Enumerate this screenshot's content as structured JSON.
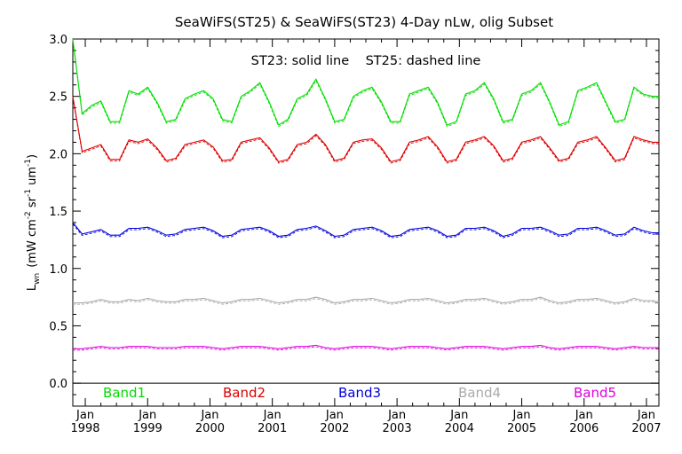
{
  "chart_data": {
    "type": "line",
    "title": "SeaWiFS(ST25) & SeaWiFS(ST23) 4-Day nLw, olig Subset",
    "annotation": "ST23: solid line    ST25: dashed line",
    "ylabel": "L_wn (mW cm^-2 sr^-1 um^-1)",
    "ylabel_parts": {
      "main": "L",
      "sub": "wn",
      "unit": "(mW cm",
      "e1": "-2",
      "mid": " sr",
      "e2": "-1",
      "mid2": " um",
      "e3": "-1",
      "close": ")"
    },
    "ylim": [
      -0.2,
      3.0
    ],
    "yticks": [
      "0.0",
      "0.5",
      "1.0",
      "1.5",
      "2.0",
      "2.5",
      "3.0"
    ],
    "xlim": [
      1997.8,
      2007.2
    ],
    "xticks": [
      {
        "month": "Jan",
        "year": "1998",
        "x": 1998.0
      },
      {
        "month": "Jan",
        "year": "1999",
        "x": 1999.0
      },
      {
        "month": "Jan",
        "year": "2000",
        "x": 2000.0
      },
      {
        "month": "Jan",
        "year": "2001",
        "x": 2001.0
      },
      {
        "month": "Jan",
        "year": "2002",
        "x": 2002.0
      },
      {
        "month": "Jan",
        "year": "2003",
        "x": 2003.0
      },
      {
        "month": "Jan",
        "year": "2004",
        "x": 2004.0
      },
      {
        "month": "Jan",
        "year": "2005",
        "x": 2005.0
      },
      {
        "month": "Jan",
        "year": "2006",
        "x": 2006.0
      },
      {
        "month": "Jan",
        "year": "2007",
        "x": 2007.0
      }
    ],
    "x": [
      1997.8,
      1997.95,
      1998.1,
      1998.25,
      1998.4,
      1998.55,
      1998.7,
      1998.85,
      1999.0,
      1999.15,
      1999.3,
      1999.45,
      1999.6,
      1999.75,
      1999.9,
      2000.05,
      2000.2,
      2000.35,
      2000.5,
      2000.65,
      2000.8,
      2000.95,
      2001.1,
      2001.25,
      2001.4,
      2001.55,
      2001.7,
      2001.85,
      2002.0,
      2002.15,
      2002.3,
      2002.45,
      2002.6,
      2002.75,
      2002.9,
      2003.05,
      2003.2,
      2003.35,
      2003.5,
      2003.65,
      2003.8,
      2003.95,
      2004.1,
      2004.25,
      2004.4,
      2004.55,
      2004.7,
      2004.85,
      2005.0,
      2005.15,
      2005.3,
      2005.45,
      2005.6,
      2005.75,
      2005.9,
      2006.05,
      2006.2,
      2006.35,
      2006.5,
      2006.65,
      2006.8,
      2006.95,
      2007.1,
      2007.2
    ],
    "series": [
      {
        "name": "Band1",
        "color": "#00dd00",
        "values": [
          3.0,
          2.35,
          2.42,
          2.46,
          2.28,
          2.28,
          2.55,
          2.52,
          2.58,
          2.45,
          2.28,
          2.3,
          2.48,
          2.52,
          2.55,
          2.48,
          2.3,
          2.28,
          2.5,
          2.55,
          2.62,
          2.45,
          2.25,
          2.3,
          2.48,
          2.52,
          2.65,
          2.48,
          2.28,
          2.3,
          2.5,
          2.55,
          2.58,
          2.45,
          2.28,
          2.28,
          2.52,
          2.55,
          2.58,
          2.45,
          2.25,
          2.28,
          2.52,
          2.55,
          2.62,
          2.48,
          2.28,
          2.3,
          2.52,
          2.55,
          2.62,
          2.45,
          2.25,
          2.28,
          2.55,
          2.58,
          2.62,
          2.45,
          2.28,
          2.3,
          2.58,
          2.52,
          2.5,
          2.5
        ]
      },
      {
        "name": "Band2",
        "color": "#dd0000",
        "values": [
          2.5,
          2.02,
          2.05,
          2.08,
          1.95,
          1.95,
          2.12,
          2.1,
          2.13,
          2.05,
          1.94,
          1.96,
          2.08,
          2.1,
          2.12,
          2.06,
          1.94,
          1.95,
          2.1,
          2.12,
          2.14,
          2.05,
          1.93,
          1.95,
          2.08,
          2.1,
          2.17,
          2.08,
          1.94,
          1.96,
          2.1,
          2.12,
          2.13,
          2.05,
          1.93,
          1.95,
          2.1,
          2.12,
          2.15,
          2.06,
          1.93,
          1.95,
          2.1,
          2.12,
          2.15,
          2.07,
          1.94,
          1.96,
          2.1,
          2.12,
          2.15,
          2.05,
          1.94,
          1.96,
          2.1,
          2.12,
          2.15,
          2.05,
          1.94,
          1.96,
          2.15,
          2.12,
          2.1,
          2.1
        ]
      },
      {
        "name": "Band3",
        "color": "#0000dd",
        "values": [
          1.4,
          1.3,
          1.32,
          1.34,
          1.29,
          1.29,
          1.35,
          1.35,
          1.36,
          1.33,
          1.29,
          1.3,
          1.34,
          1.35,
          1.36,
          1.33,
          1.28,
          1.29,
          1.34,
          1.35,
          1.36,
          1.33,
          1.28,
          1.29,
          1.34,
          1.35,
          1.37,
          1.33,
          1.28,
          1.29,
          1.34,
          1.35,
          1.36,
          1.33,
          1.28,
          1.29,
          1.34,
          1.35,
          1.36,
          1.33,
          1.28,
          1.29,
          1.35,
          1.35,
          1.36,
          1.33,
          1.28,
          1.3,
          1.35,
          1.35,
          1.36,
          1.33,
          1.29,
          1.3,
          1.35,
          1.35,
          1.36,
          1.33,
          1.29,
          1.3,
          1.36,
          1.33,
          1.31,
          1.31
        ]
      },
      {
        "name": "Band4",
        "color": "#aaaaaa",
        "values": [
          0.7,
          0.7,
          0.71,
          0.73,
          0.71,
          0.71,
          0.73,
          0.72,
          0.74,
          0.72,
          0.71,
          0.71,
          0.73,
          0.73,
          0.74,
          0.72,
          0.7,
          0.71,
          0.73,
          0.73,
          0.74,
          0.72,
          0.7,
          0.71,
          0.73,
          0.73,
          0.75,
          0.73,
          0.7,
          0.71,
          0.73,
          0.73,
          0.74,
          0.72,
          0.7,
          0.71,
          0.73,
          0.73,
          0.74,
          0.72,
          0.7,
          0.71,
          0.73,
          0.73,
          0.74,
          0.72,
          0.7,
          0.71,
          0.73,
          0.73,
          0.75,
          0.72,
          0.7,
          0.71,
          0.73,
          0.73,
          0.74,
          0.72,
          0.7,
          0.71,
          0.74,
          0.72,
          0.72,
          0.71
        ]
      },
      {
        "name": "Band5",
        "color": "#dd00dd",
        "values": [
          0.3,
          0.3,
          0.31,
          0.32,
          0.31,
          0.31,
          0.32,
          0.32,
          0.32,
          0.31,
          0.31,
          0.31,
          0.32,
          0.32,
          0.32,
          0.31,
          0.3,
          0.31,
          0.32,
          0.32,
          0.32,
          0.31,
          0.3,
          0.31,
          0.32,
          0.32,
          0.33,
          0.31,
          0.3,
          0.31,
          0.32,
          0.32,
          0.32,
          0.31,
          0.3,
          0.31,
          0.32,
          0.32,
          0.32,
          0.31,
          0.3,
          0.31,
          0.32,
          0.32,
          0.32,
          0.31,
          0.3,
          0.31,
          0.32,
          0.32,
          0.33,
          0.31,
          0.3,
          0.31,
          0.32,
          0.32,
          0.32,
          0.31,
          0.3,
          0.31,
          0.32,
          0.31,
          0.31,
          0.31
        ]
      }
    ]
  }
}
